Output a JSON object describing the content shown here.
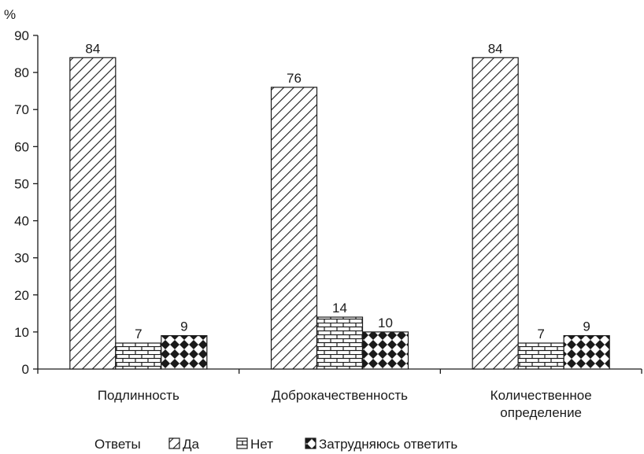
{
  "chart_data": {
    "type": "bar",
    "ylabel": "%",
    "ylim": [
      0,
      90
    ],
    "yticks": [
      0,
      10,
      20,
      30,
      40,
      50,
      60,
      70,
      80,
      90
    ],
    "categories": [
      [
        "Подлинность"
      ],
      [
        "Доброкачественность"
      ],
      [
        "Количественное",
        "определение"
      ]
    ],
    "series": [
      {
        "name": "Да",
        "values": [
          84,
          76,
          84
        ],
        "pattern": "diagonal"
      },
      {
        "name": "Нет",
        "values": [
          7,
          14,
          7
        ],
        "pattern": "brick"
      },
      {
        "name": "Затрудняюсь ответить",
        "values": [
          9,
          10,
          9
        ],
        "pattern": "checker"
      }
    ],
    "legend_title": "Ответы",
    "legend_position": "bottom",
    "grid": false
  }
}
